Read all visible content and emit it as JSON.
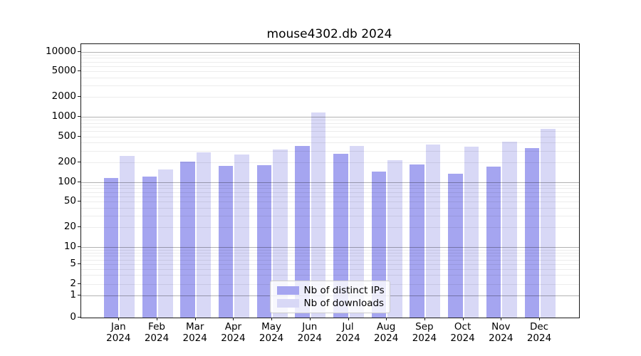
{
  "title": "mouse4302.db 2024",
  "chart_data": {
    "type": "bar",
    "title": "mouse4302.db 2024",
    "subtitle": "",
    "xlabel": "",
    "ylabel": "",
    "year": "2024",
    "months": [
      "Jan",
      "Feb",
      "Mar",
      "Apr",
      "May",
      "Jun",
      "Jul",
      "Aug",
      "Sep",
      "Oct",
      "Nov",
      "Dec"
    ],
    "categories": [
      "Jan 2024",
      "Feb 2024",
      "Mar 2024",
      "Apr 2024",
      "May 2024",
      "Jun 2024",
      "Jul 2024",
      "Aug 2024",
      "Sep 2024",
      "Oct 2024",
      "Nov 2024",
      "Dec 2024"
    ],
    "series": [
      {
        "name": "Nb of distinct IPs",
        "color": "#a5a5f0",
        "values": [
          115,
          122,
          205,
          176,
          182,
          357,
          272,
          145,
          185,
          135,
          171,
          333
        ]
      },
      {
        "name": "Nb of downloads",
        "color": "#d8d8f6",
        "values": [
          250,
          155,
          287,
          262,
          314,
          1178,
          356,
          214,
          378,
          347,
          411,
          652
        ]
      }
    ],
    "yscale": "symlog",
    "ylim": [
      0,
      13000
    ],
    "y_ticks_labeled": [
      0,
      1,
      2,
      5,
      10,
      20,
      50,
      100,
      200,
      500,
      1000,
      2000,
      5000,
      10000
    ],
    "y_major_gridlines": [
      1,
      10,
      100,
      1000,
      10000
    ],
    "y_minor_gridline_subs": [
      2,
      3,
      4,
      5,
      6,
      7,
      8,
      9
    ],
    "grid": true,
    "legend_position": "lower center",
    "legend_border_color": "#cccccc"
  }
}
